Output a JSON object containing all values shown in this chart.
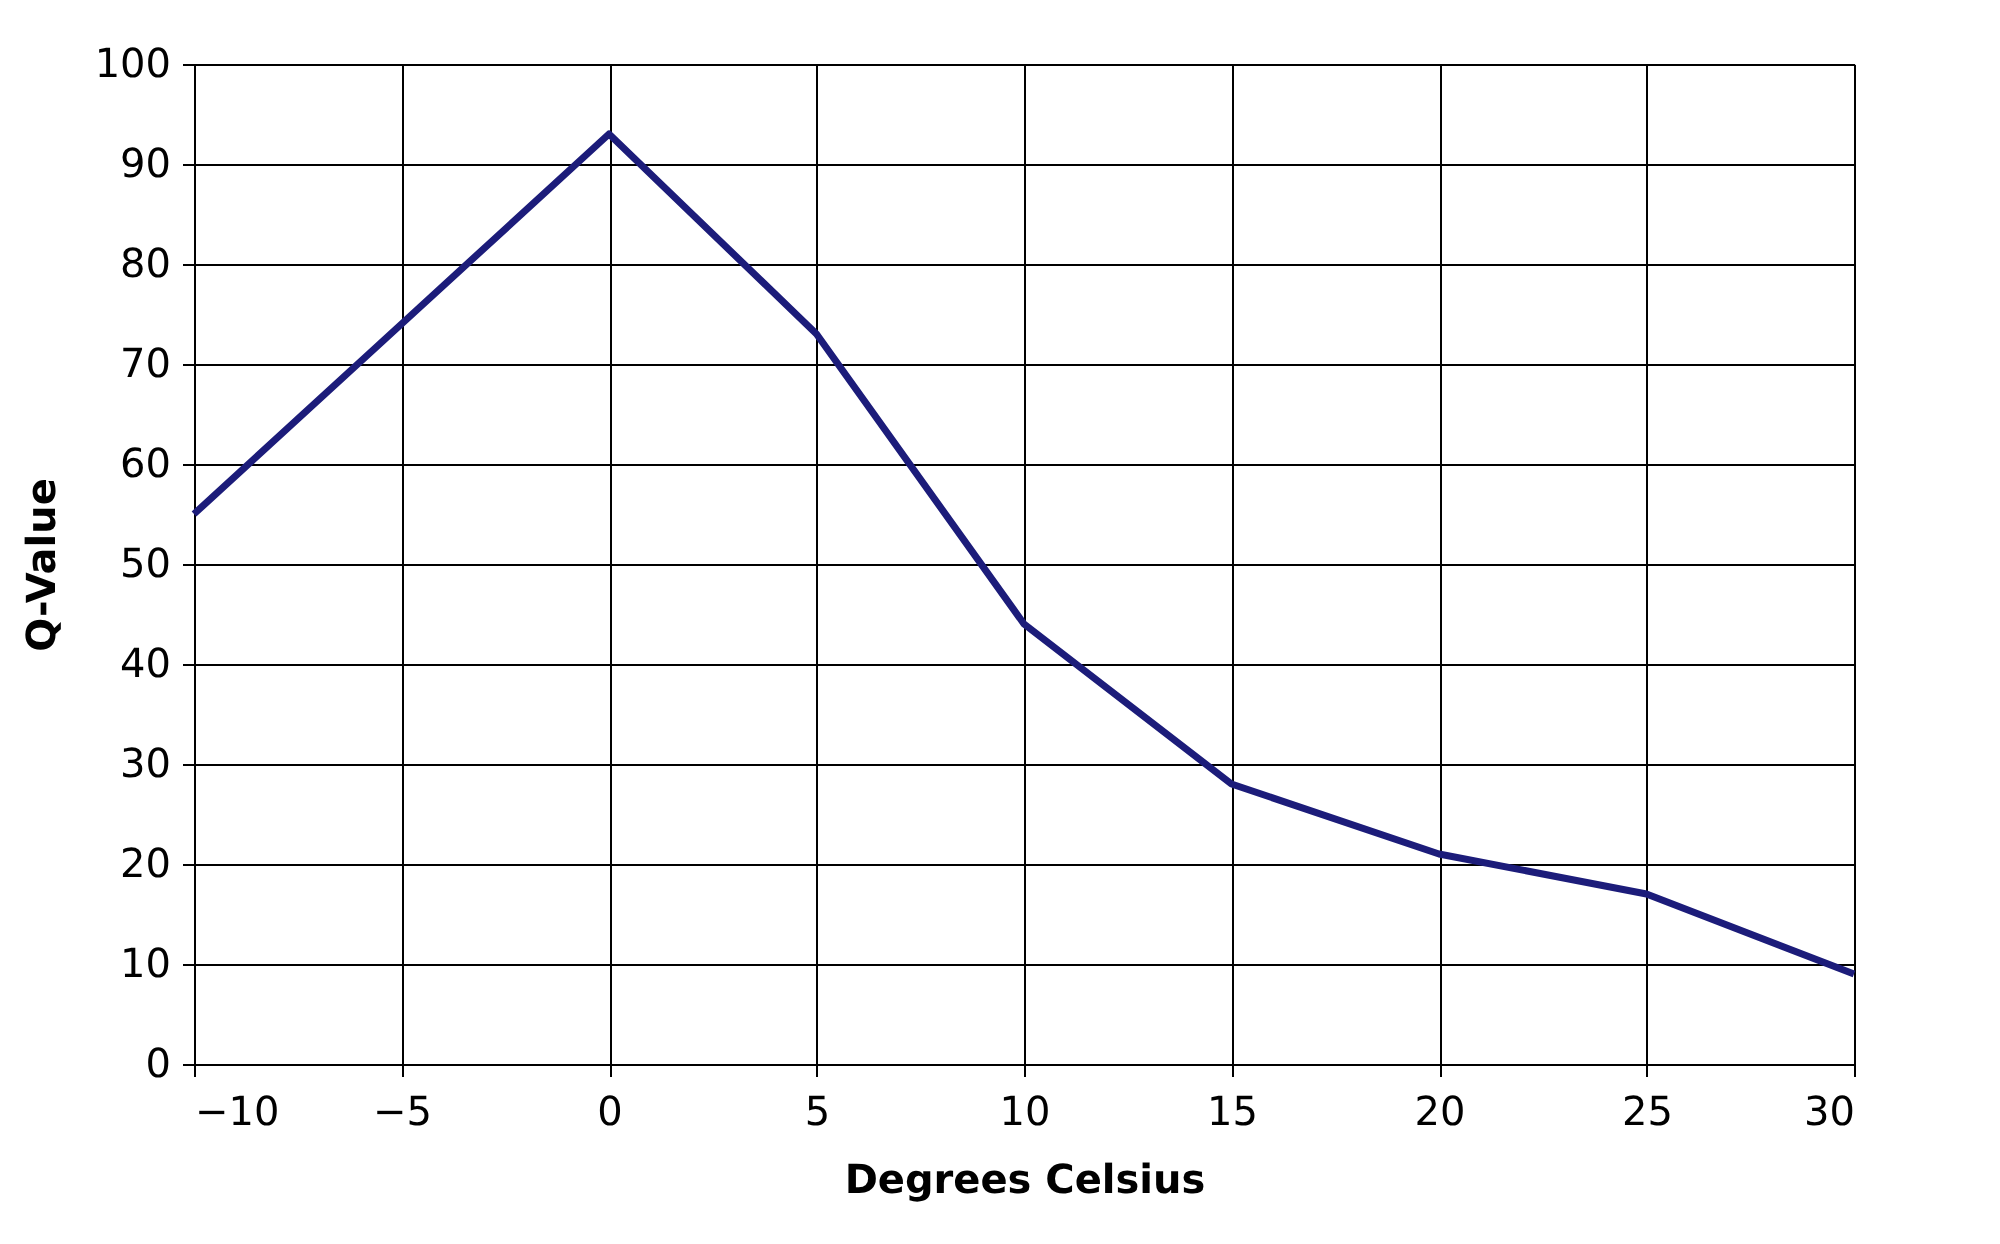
{
  "chart_data": {
    "type": "line",
    "xlabel": "Degrees Celsius",
    "ylabel": "Q-Value",
    "x": [
      -10,
      -5,
      0,
      5,
      10,
      15,
      20,
      25,
      30
    ],
    "series": [
      {
        "color": "#1c1c7a",
        "values": [
          55,
          74,
          93,
          73,
          44,
          28,
          21,
          17,
          9
        ]
      }
    ],
    "xlim": [
      -10,
      30
    ],
    "xticks": [
      -10,
      -5,
      0,
      5,
      10,
      15,
      20,
      25,
      30
    ],
    "ylim": [
      0,
      100
    ],
    "yticks": [
      0,
      10,
      20,
      30,
      40,
      50,
      60,
      70,
      80,
      90,
      100
    ],
    "grid": true,
    "marker": "none",
    "line_style": "solid"
  }
}
